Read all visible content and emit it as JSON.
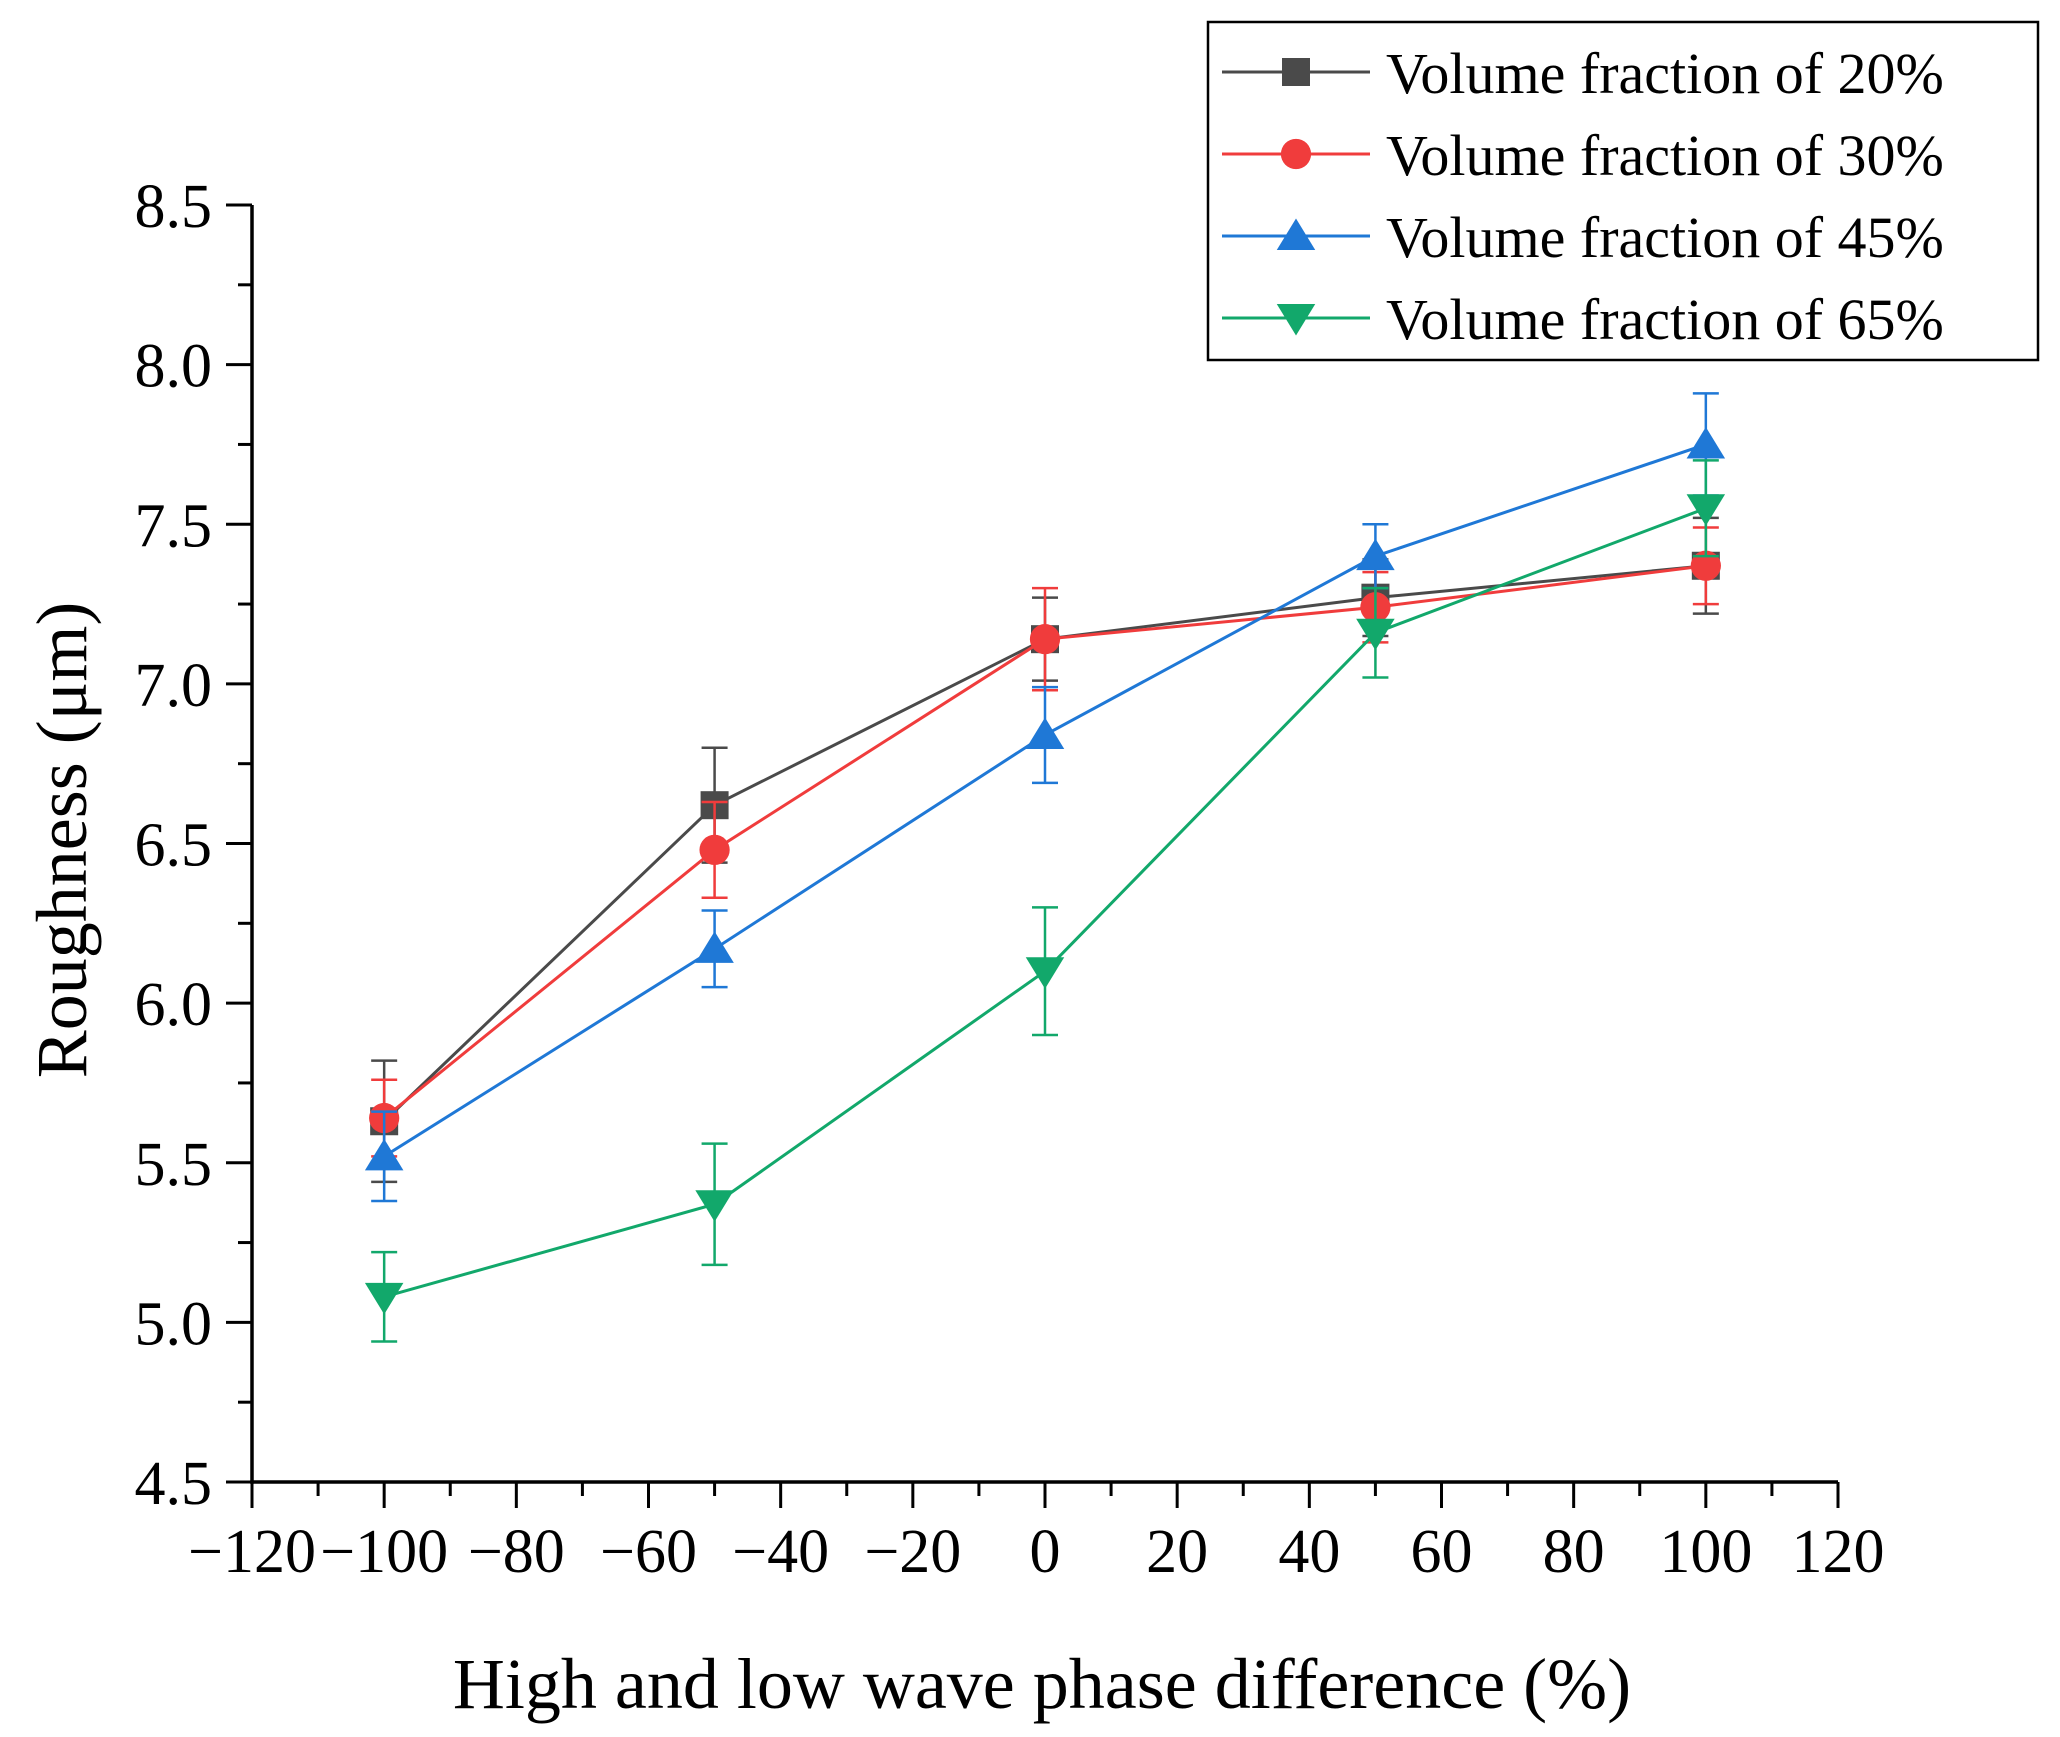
{
  "chart_data": {
    "type": "line",
    "title": "",
    "xlabel": "High and low wave phase difference (%)",
    "ylabel": "Roughness (μm)",
    "xlim": [
      -120,
      120
    ],
    "ylim": [
      4.5,
      8.5
    ],
    "x_ticks": [
      -120,
      -100,
      -80,
      -60,
      -40,
      -20,
      0,
      20,
      40,
      60,
      80,
      100,
      120
    ],
    "x_tick_labels": [
      "−120",
      "−100",
      "−80",
      "−60",
      "−40",
      "−20",
      "0",
      "20",
      "40",
      "60",
      "80",
      "100",
      "120"
    ],
    "y_ticks": [
      4.5,
      5.0,
      5.5,
      6.0,
      6.5,
      7.0,
      7.5,
      8.0,
      8.5
    ],
    "y_tick_labels": [
      "4.5",
      "5.0",
      "5.5",
      "6.0",
      "6.5",
      "7.0",
      "7.5",
      "8.0",
      "8.5"
    ],
    "grid": false,
    "legend_position": "top-right",
    "x": [
      -100,
      -50,
      0,
      50,
      100
    ],
    "series": [
      {
        "name": "Volume fraction of 20%",
        "color": "#4a4a4a",
        "marker": "square",
        "values": [
          5.63,
          6.62,
          7.14,
          7.27,
          7.37
        ],
        "errors": [
          0.19,
          0.18,
          0.13,
          0.12,
          0.15
        ]
      },
      {
        "name": "Volume fraction of 30%",
        "color": "#f03c3c",
        "marker": "circle",
        "values": [
          5.64,
          6.48,
          7.14,
          7.24,
          7.37
        ],
        "errors": [
          0.12,
          0.15,
          0.16,
          0.11,
          0.12
        ]
      },
      {
        "name": "Volume fraction of 45%",
        "color": "#1f78d6",
        "marker": "triangle-up",
        "values": [
          5.52,
          6.17,
          6.84,
          7.4,
          7.75
        ],
        "errors": [
          0.14,
          0.12,
          0.15,
          0.1,
          0.16
        ]
      },
      {
        "name": "Volume fraction of 65%",
        "color": "#12a86b",
        "marker": "triangle-down",
        "values": [
          5.08,
          5.37,
          6.1,
          7.16,
          7.55
        ],
        "errors": [
          0.14,
          0.19,
          0.2,
          0.14,
          0.15
        ]
      }
    ]
  }
}
